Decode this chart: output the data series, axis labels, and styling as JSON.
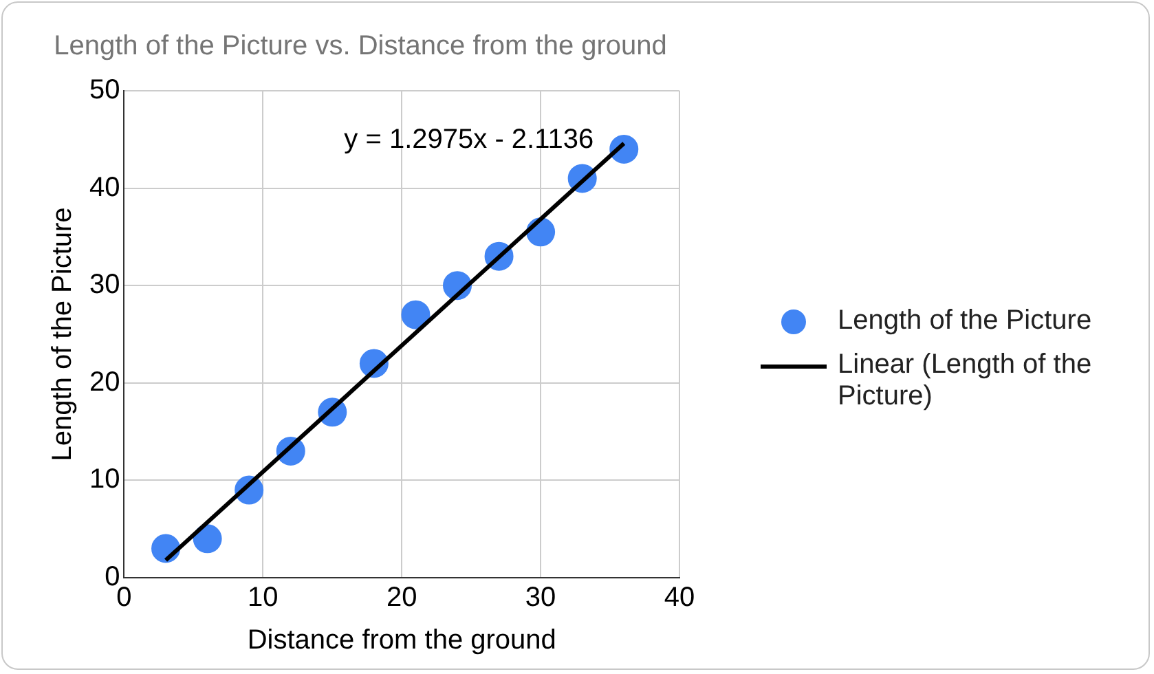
{
  "chart_data": {
    "type": "scatter",
    "title": "Length of the Picture vs. Distance from the ground",
    "xlabel": "Distance from the ground",
    "ylabel": "Length of the Picture",
    "x": [
      3,
      6,
      9,
      12,
      15,
      18,
      21,
      24,
      27,
      30,
      33,
      36
    ],
    "series": [
      {
        "name": "Length of the Picture",
        "color": "#4285f4",
        "values": [
          3,
          4,
          9,
          13,
          17,
          22,
          27,
          30,
          33,
          35.5,
          41,
          44
        ],
        "marker": "circle"
      },
      {
        "name": "Linear (Length of the Picture)",
        "type": "line",
        "color": "#000000",
        "x": [
          3,
          36
        ],
        "values": [
          1.8,
          44.6
        ],
        "marker": "none"
      }
    ],
    "annotations": [
      "y = 1.2975x - 2.1136"
    ],
    "xlim": [
      0,
      40
    ],
    "xticks": [
      0,
      10,
      20,
      30,
      40
    ],
    "ylim": [
      0,
      50
    ],
    "yticks": [
      0,
      10,
      20,
      30,
      40,
      50
    ],
    "grid": true,
    "legend": "right"
  }
}
